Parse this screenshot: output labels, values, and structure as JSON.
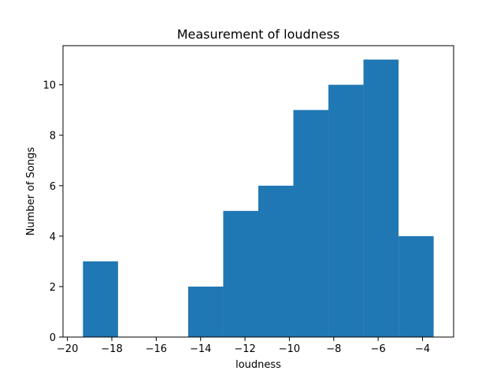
{
  "chart_data": {
    "type": "bar",
    "title": "Measurement of loudness",
    "xlabel": "loudness",
    "ylabel": "Number of Songs",
    "bin_edges": [
      -19.3,
      -17.72,
      -16.14,
      -14.56,
      -12.98,
      -11.4,
      -9.82,
      -8.24,
      -6.66,
      -5.08,
      -3.5
    ],
    "values": [
      3,
      0,
      0,
      2,
      5,
      6,
      9,
      10,
      11,
      4
    ],
    "xlim": [
      -20.2,
      -2.6
    ],
    "ylim": [
      0,
      11.55
    ],
    "xticks": [
      -20,
      -18,
      -16,
      -14,
      -12,
      -10,
      -8,
      -6,
      -4
    ],
    "xtick_labels": [
      "−20",
      "−18",
      "−16",
      "−14",
      "−12",
      "−10",
      "−8",
      "−6",
      "−4"
    ],
    "yticks": [
      0,
      2,
      4,
      6,
      8,
      10
    ],
    "ytick_labels": [
      "0",
      "2",
      "4",
      "6",
      "8",
      "10"
    ],
    "bar_color": "#1f77b4",
    "grid": false,
    "legend": "none"
  }
}
